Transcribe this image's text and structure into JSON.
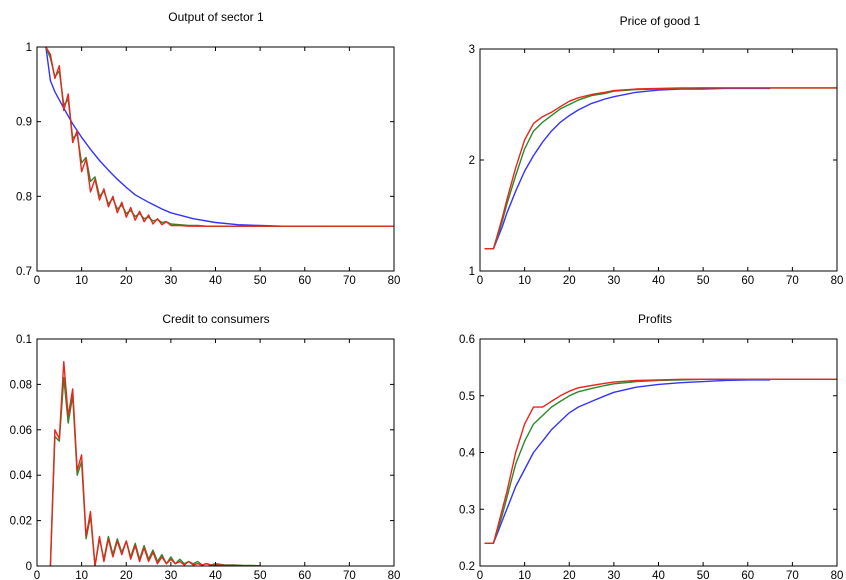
{
  "colors": {
    "blue": "#3333ff",
    "green": "#2a8a2a",
    "red": "#e8261c"
  },
  "chart_data": [
    {
      "type": "line",
      "title": "Output of sector 1",
      "xlim": [
        0,
        80
      ],
      "ylim": [
        0.7,
        1
      ],
      "xticks": [
        "0",
        "10",
        "20",
        "30",
        "40",
        "50",
        "60",
        "70",
        "80"
      ],
      "yticks": [
        "0.7",
        "0.8",
        "0.9",
        "1"
      ],
      "grid": false,
      "series": [
        {
          "color": "blue",
          "x": [
            2,
            3,
            4,
            6,
            8,
            10,
            12,
            14,
            16,
            18,
            20,
            22,
            25,
            28,
            30,
            35,
            40,
            45,
            50,
            55,
            60,
            65
          ],
          "y": [
            1,
            0.955,
            0.94,
            0.918,
            0.897,
            0.879,
            0.863,
            0.848,
            0.835,
            0.823,
            0.812,
            0.802,
            0.792,
            0.783,
            0.778,
            0.77,
            0.765,
            0.762,
            0.761,
            0.76,
            0.76,
            0.76
          ]
        },
        {
          "color": "green",
          "x": [
            2,
            3,
            4,
            5,
            6,
            7,
            8,
            9,
            10,
            11,
            12,
            13,
            14,
            15,
            16,
            17,
            18,
            19,
            20,
            21,
            22,
            23,
            24,
            25,
            26,
            27,
            28,
            29,
            30,
            32,
            34,
            36,
            38,
            40,
            45,
            50,
            55,
            60,
            65,
            70,
            75,
            80
          ],
          "y": [
            1,
            0.985,
            0.96,
            0.968,
            0.922,
            0.93,
            0.878,
            0.883,
            0.845,
            0.852,
            0.82,
            0.826,
            0.8,
            0.807,
            0.79,
            0.797,
            0.783,
            0.788,
            0.777,
            0.781,
            0.773,
            0.777,
            0.77,
            0.772,
            0.767,
            0.769,
            0.765,
            0.766,
            0.763,
            0.762,
            0.761,
            0.761,
            0.76,
            0.76,
            0.76,
            0.76,
            0.76,
            0.76,
            0.76,
            0.76,
            0.76,
            0.76
          ]
        },
        {
          "color": "red",
          "x": [
            2,
            3,
            4,
            5,
            6,
            7,
            8,
            9,
            10,
            11,
            12,
            13,
            14,
            15,
            16,
            17,
            18,
            19,
            20,
            21,
            22,
            23,
            24,
            25,
            26,
            27,
            28,
            29,
            30,
            32,
            34,
            36,
            38,
            40,
            45,
            50,
            55,
            60,
            65,
            70,
            75,
            80
          ],
          "y": [
            1,
            0.99,
            0.958,
            0.975,
            0.915,
            0.937,
            0.872,
            0.888,
            0.833,
            0.85,
            0.806,
            0.823,
            0.795,
            0.81,
            0.786,
            0.8,
            0.778,
            0.792,
            0.772,
            0.785,
            0.768,
            0.78,
            0.766,
            0.775,
            0.763,
            0.77,
            0.762,
            0.766,
            0.761,
            0.761,
            0.76,
            0.76,
            0.76,
            0.76,
            0.76,
            0.76,
            0.76,
            0.76,
            0.76,
            0.76,
            0.76,
            0.76
          ]
        }
      ]
    },
    {
      "type": "line",
      "title": "Price of good 1",
      "xlim": [
        0,
        80
      ],
      "ylim": [
        1,
        3
      ],
      "xticks": [
        "0",
        "10",
        "20",
        "30",
        "40",
        "50",
        "60",
        "70",
        "80"
      ],
      "yticks": [
        "1",
        "2",
        "3"
      ],
      "grid": false,
      "series": [
        {
          "color": "blue",
          "x": [
            1,
            3,
            4,
            5,
            6,
            8,
            10,
            12,
            14,
            16,
            18,
            20,
            22,
            25,
            28,
            30,
            35,
            40,
            45,
            50,
            55,
            60,
            65
          ],
          "y": [
            1.2,
            1.2,
            1.3,
            1.4,
            1.52,
            1.72,
            1.9,
            2.04,
            2.16,
            2.26,
            2.34,
            2.4,
            2.45,
            2.51,
            2.55,
            2.57,
            2.61,
            2.63,
            2.64,
            2.64,
            2.645,
            2.645,
            2.645
          ]
        },
        {
          "color": "green",
          "x": [
            1,
            3,
            4,
            5,
            6,
            8,
            10,
            12,
            14,
            16,
            18,
            20,
            22,
            25,
            28,
            30,
            35,
            40,
            45,
            50,
            55,
            60,
            65,
            70,
            75,
            80
          ],
          "y": [
            1.2,
            1.2,
            1.32,
            1.45,
            1.6,
            1.86,
            2.1,
            2.26,
            2.34,
            2.4,
            2.46,
            2.5,
            2.54,
            2.58,
            2.6,
            2.62,
            2.635,
            2.64,
            2.645,
            2.65,
            2.65,
            2.65,
            2.65,
            2.65,
            2.65,
            2.65
          ]
        },
        {
          "color": "red",
          "x": [
            1,
            3,
            4,
            5,
            6,
            8,
            10,
            12,
            14,
            15,
            16,
            18,
            20,
            22,
            25,
            28,
            30,
            35,
            40,
            45,
            50,
            55,
            60,
            65,
            70,
            75,
            80
          ],
          "y": [
            1.2,
            1.2,
            1.34,
            1.48,
            1.64,
            1.93,
            2.18,
            2.33,
            2.39,
            2.41,
            2.43,
            2.48,
            2.53,
            2.56,
            2.59,
            2.61,
            2.625,
            2.64,
            2.645,
            2.65,
            2.65,
            2.65,
            2.65,
            2.65,
            2.65,
            2.65,
            2.65
          ]
        }
      ]
    },
    {
      "type": "line",
      "title": "Credit to consumers",
      "xlim": [
        0,
        80
      ],
      "ylim": [
        0,
        0.1
      ],
      "xticks": [
        "0",
        "10",
        "20",
        "30",
        "40",
        "50",
        "60",
        "70",
        "80"
      ],
      "yticks": [
        "0",
        "0.02",
        "0.04",
        "0.06",
        "0.08",
        "0.1"
      ],
      "grid": false,
      "series": [
        {
          "color": "green",
          "x": [
            3,
            4,
            5,
            6,
            7,
            8,
            9,
            10,
            11,
            12,
            13,
            14,
            15,
            16,
            17,
            18,
            19,
            20,
            21,
            22,
            23,
            24,
            25,
            26,
            27,
            28,
            29,
            30,
            31,
            32,
            33,
            34,
            35,
            36,
            37,
            38,
            39,
            40,
            42,
            44,
            46,
            48,
            50
          ],
          "y": [
            0,
            0.057,
            0.055,
            0.083,
            0.063,
            0.075,
            0.04,
            0.046,
            0.012,
            0.022,
            0,
            0.012,
            0.003,
            0.013,
            0.005,
            0.012,
            0.006,
            0.011,
            0.004,
            0.01,
            0.003,
            0.009,
            0.003,
            0.007,
            0.002,
            0.005,
            0.001,
            0.004,
            0.001,
            0.003,
            0.001,
            0.002,
            0.001,
            0.002,
            0.0005,
            0.001,
            0.0005,
            0.001,
            0.0005,
            0.0005,
            0.0003,
            0.0002,
            0.0001
          ]
        },
        {
          "color": "red",
          "x": [
            3,
            4,
            5,
            6,
            7,
            8,
            9,
            10,
            11,
            12,
            13,
            14,
            15,
            16,
            17,
            18,
            19,
            20,
            21,
            22,
            23,
            24,
            25,
            26,
            27,
            28,
            29,
            30,
            31,
            32,
            33,
            34,
            35,
            36,
            37,
            38,
            39,
            40,
            42,
            44,
            46,
            48,
            50
          ],
          "y": [
            0,
            0.06,
            0.056,
            0.09,
            0.066,
            0.078,
            0.042,
            0.049,
            0.013,
            0.024,
            0,
            0.013,
            0.002,
            0.012,
            0.004,
            0.011,
            0.005,
            0.011,
            0.003,
            0.009,
            0.002,
            0.008,
            0.002,
            0.006,
            0.001,
            0.004,
            0.001,
            0.003,
            0.001,
            0.002,
            0.0005,
            0.002,
            0.0005,
            0.001,
            0.0005,
            0.001,
            0.0003,
            0.0005,
            0.0003,
            0.0002,
            0.0001,
            0.0001,
            0
          ]
        }
      ]
    },
    {
      "type": "line",
      "title": "Profits",
      "xlim": [
        0,
        80
      ],
      "ylim": [
        0.2,
        0.6
      ],
      "xticks": [
        "0",
        "10",
        "20",
        "30",
        "40",
        "50",
        "60",
        "70",
        "80"
      ],
      "yticks": [
        "0.2",
        "0.3",
        "0.4",
        "0.5",
        "0.6"
      ],
      "grid": false,
      "series": [
        {
          "color": "blue",
          "x": [
            1,
            3,
            4,
            5,
            6,
            8,
            10,
            12,
            14,
            16,
            18,
            20,
            22,
            25,
            28,
            30,
            35,
            40,
            45,
            50,
            55,
            60,
            65
          ],
          "y": [
            0.24,
            0.24,
            0.26,
            0.28,
            0.3,
            0.34,
            0.37,
            0.4,
            0.42,
            0.44,
            0.455,
            0.47,
            0.48,
            0.49,
            0.5,
            0.506,
            0.515,
            0.52,
            0.523,
            0.525,
            0.527,
            0.528,
            0.528
          ]
        },
        {
          "color": "green",
          "x": [
            1,
            3,
            4,
            5,
            6,
            8,
            10,
            12,
            14,
            16,
            18,
            20,
            22,
            25,
            28,
            30,
            35,
            40,
            45,
            50,
            55,
            60,
            65,
            70,
            75,
            80
          ],
          "y": [
            0.24,
            0.24,
            0.265,
            0.29,
            0.32,
            0.38,
            0.42,
            0.45,
            0.465,
            0.48,
            0.49,
            0.5,
            0.507,
            0.513,
            0.518,
            0.521,
            0.525,
            0.527,
            0.528,
            0.529,
            0.529,
            0.529,
            0.529,
            0.529,
            0.529,
            0.529
          ]
        },
        {
          "color": "red",
          "x": [
            1,
            3,
            4,
            5,
            6,
            8,
            10,
            12,
            14,
            15,
            16,
            18,
            20,
            22,
            25,
            28,
            30,
            35,
            40,
            45,
            50,
            55,
            60,
            65,
            70,
            75,
            80
          ],
          "y": [
            0.24,
            0.24,
            0.27,
            0.3,
            0.33,
            0.4,
            0.45,
            0.48,
            0.48,
            0.485,
            0.49,
            0.5,
            0.508,
            0.514,
            0.518,
            0.522,
            0.524,
            0.527,
            0.528,
            0.529,
            0.529,
            0.529,
            0.529,
            0.529,
            0.529,
            0.529,
            0.529
          ]
        }
      ]
    }
  ]
}
